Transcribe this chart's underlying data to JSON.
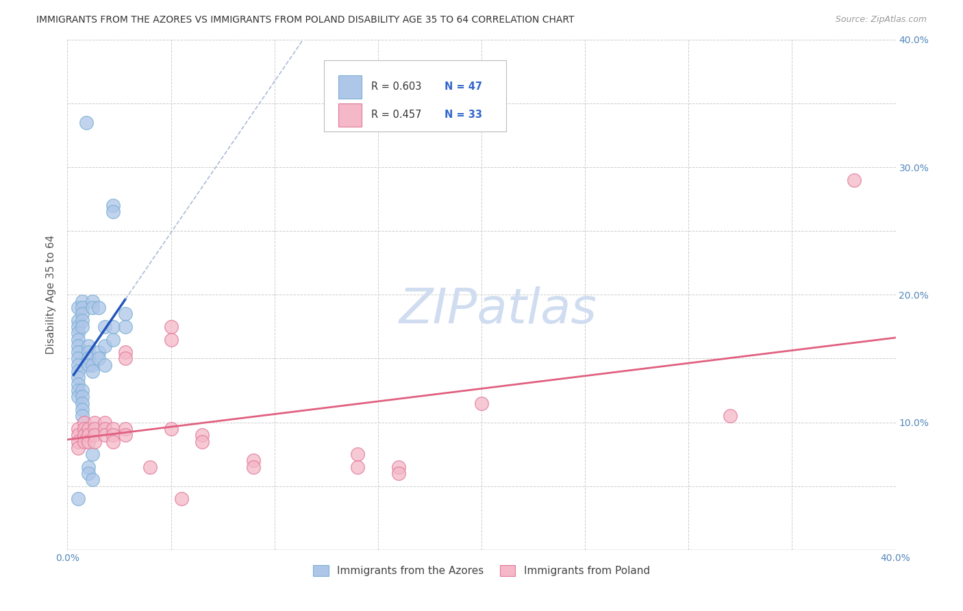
{
  "title": "IMMIGRANTS FROM THE AZORES VS IMMIGRANTS FROM POLAND DISABILITY AGE 35 TO 64 CORRELATION CHART",
  "source": "Source: ZipAtlas.com",
  "ylabel": "Disability Age 35 to 64",
  "xlim": [
    0.0,
    0.4
  ],
  "ylim": [
    0.0,
    0.4
  ],
  "grid_color": "#cccccc",
  "background_color": "#ffffff",
  "azores_color": "#aec6e8",
  "azores_edge_color": "#7aafd4",
  "poland_color": "#f4b8c8",
  "poland_edge_color": "#e07898",
  "azores_line_color": "#2255bb",
  "azores_dash_color": "#aabbd8",
  "poland_line_color": "#e06080",
  "r_azores": 0.603,
  "n_azores": 47,
  "r_poland": 0.457,
  "n_poland": 33,
  "legend_r_color": "#333333",
  "legend_n_color": "#3366cc",
  "watermark_color": "#d0ddf0",
  "azores_points": [
    [
      0.005,
      0.19
    ],
    [
      0.005,
      0.18
    ],
    [
      0.005,
      0.175
    ],
    [
      0.005,
      0.17
    ],
    [
      0.005,
      0.165
    ],
    [
      0.005,
      0.16
    ],
    [
      0.005,
      0.155
    ],
    [
      0.005,
      0.15
    ],
    [
      0.005,
      0.145
    ],
    [
      0.005,
      0.14
    ],
    [
      0.005,
      0.135
    ],
    [
      0.005,
      0.13
    ],
    [
      0.005,
      0.125
    ],
    [
      0.005,
      0.12
    ],
    [
      0.007,
      0.195
    ],
    [
      0.007,
      0.19
    ],
    [
      0.007,
      0.185
    ],
    [
      0.007,
      0.18
    ],
    [
      0.007,
      0.175
    ],
    [
      0.007,
      0.125
    ],
    [
      0.007,
      0.12
    ],
    [
      0.007,
      0.115
    ],
    [
      0.007,
      0.11
    ],
    [
      0.007,
      0.105
    ],
    [
      0.01,
      0.16
    ],
    [
      0.01,
      0.155
    ],
    [
      0.01,
      0.15
    ],
    [
      0.01,
      0.145
    ],
    [
      0.012,
      0.195
    ],
    [
      0.012,
      0.19
    ],
    [
      0.012,
      0.145
    ],
    [
      0.012,
      0.14
    ],
    [
      0.015,
      0.19
    ],
    [
      0.015,
      0.155
    ],
    [
      0.015,
      0.15
    ],
    [
      0.018,
      0.175
    ],
    [
      0.018,
      0.16
    ],
    [
      0.018,
      0.145
    ],
    [
      0.022,
      0.175
    ],
    [
      0.022,
      0.165
    ],
    [
      0.028,
      0.185
    ],
    [
      0.028,
      0.175
    ],
    [
      0.022,
      0.27
    ],
    [
      0.022,
      0.265
    ],
    [
      0.01,
      0.065
    ],
    [
      0.012,
      0.075
    ],
    [
      0.009,
      0.335
    ]
  ],
  "azores_low_points": [
    [
      0.005,
      0.04
    ],
    [
      0.01,
      0.06
    ],
    [
      0.012,
      0.055
    ]
  ],
  "poland_points": [
    [
      0.005,
      0.095
    ],
    [
      0.005,
      0.09
    ],
    [
      0.005,
      0.085
    ],
    [
      0.005,
      0.08
    ],
    [
      0.008,
      0.1
    ],
    [
      0.008,
      0.095
    ],
    [
      0.008,
      0.09
    ],
    [
      0.008,
      0.085
    ],
    [
      0.01,
      0.095
    ],
    [
      0.01,
      0.09
    ],
    [
      0.01,
      0.085
    ],
    [
      0.013,
      0.1
    ],
    [
      0.013,
      0.095
    ],
    [
      0.013,
      0.09
    ],
    [
      0.013,
      0.085
    ],
    [
      0.018,
      0.1
    ],
    [
      0.018,
      0.095
    ],
    [
      0.018,
      0.09
    ],
    [
      0.022,
      0.095
    ],
    [
      0.022,
      0.09
    ],
    [
      0.022,
      0.085
    ],
    [
      0.028,
      0.155
    ],
    [
      0.028,
      0.15
    ],
    [
      0.028,
      0.095
    ],
    [
      0.028,
      0.09
    ],
    [
      0.05,
      0.175
    ],
    [
      0.05,
      0.165
    ],
    [
      0.05,
      0.095
    ],
    [
      0.065,
      0.09
    ],
    [
      0.065,
      0.085
    ],
    [
      0.2,
      0.115
    ],
    [
      0.32,
      0.105
    ],
    [
      0.38,
      0.29
    ]
  ],
  "poland_low_points": [
    [
      0.04,
      0.065
    ],
    [
      0.055,
      0.04
    ],
    [
      0.09,
      0.07
    ],
    [
      0.09,
      0.065
    ],
    [
      0.14,
      0.075
    ],
    [
      0.14,
      0.065
    ],
    [
      0.16,
      0.065
    ],
    [
      0.16,
      0.06
    ]
  ]
}
